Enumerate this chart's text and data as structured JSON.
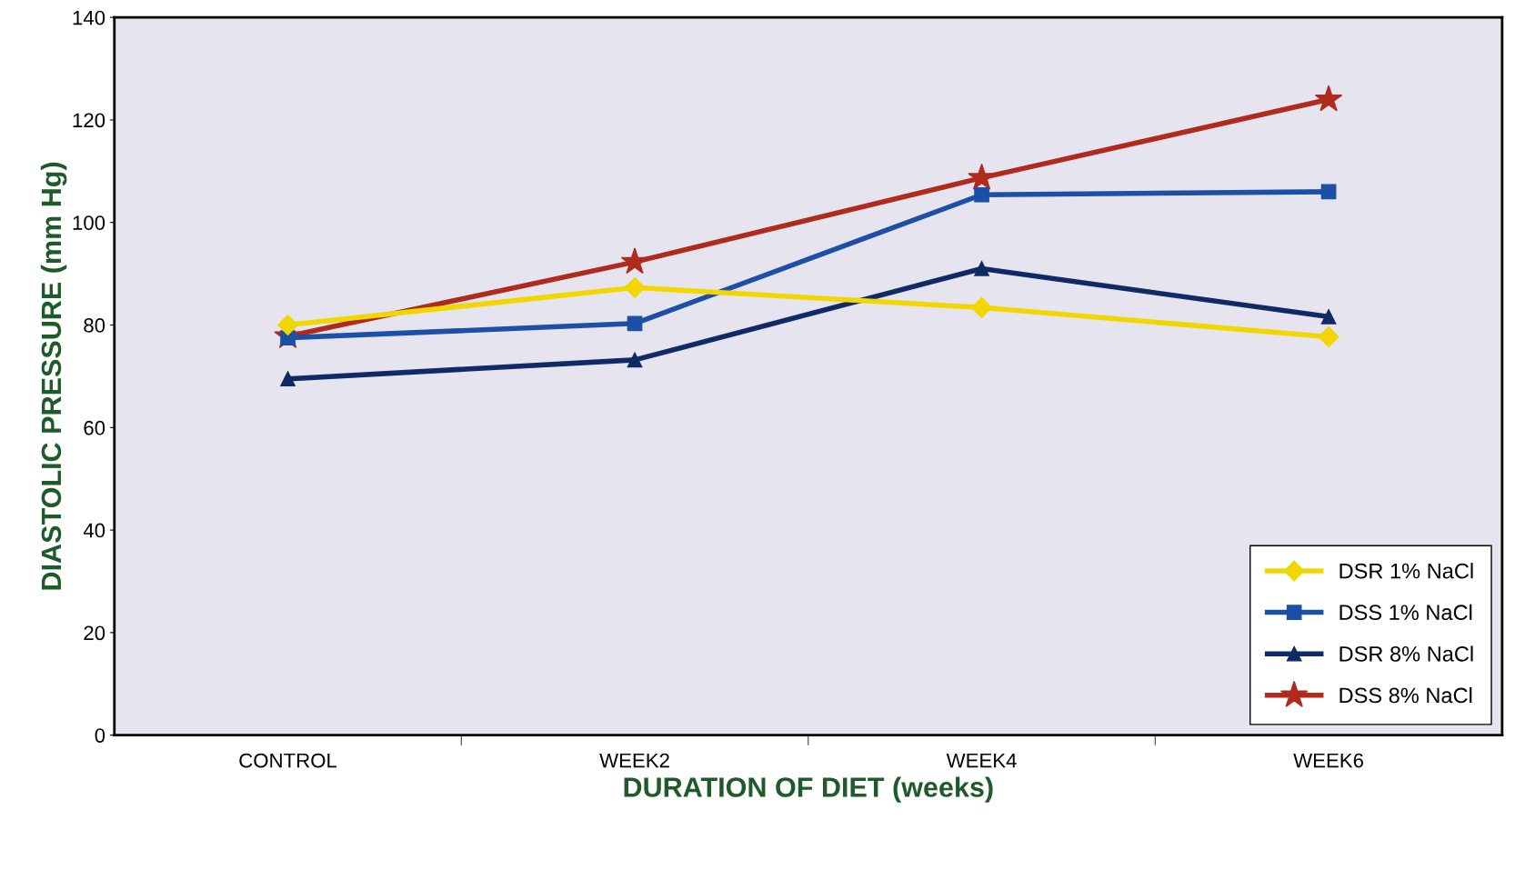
{
  "chart_data": {
    "type": "line",
    "xlabel": "DURATION OF DIET (weeks)",
    "ylabel": "DIASTOLIC PRESSURE (mm Hg)",
    "categories": [
      "CONTROL",
      "WEEK2",
      "WEEK4",
      "WEEK6"
    ],
    "series": [
      {
        "name": "DSR 1% NaCl",
        "color": "#f2d600",
        "marker": "diamond",
        "values": [
          80,
          87.3,
          83.4,
          77.7
        ]
      },
      {
        "name": "DSS 1% NaCl",
        "color": "#1c4fa6",
        "marker": "square",
        "values": [
          77.5,
          80.3,
          105.4,
          106
        ]
      },
      {
        "name": "DSR 8% NaCl",
        "color": "#102a66",
        "marker": "triangle",
        "values": [
          69.5,
          73.2,
          91,
          81.6
        ]
      },
      {
        "name": "DSS 8% NaCl",
        "color": "#b02a1e",
        "marker": "star",
        "values": [
          77.8,
          92.3,
          108.7,
          124
        ]
      }
    ],
    "ylim": [
      0,
      140
    ],
    "yticks": [
      0,
      20,
      40,
      60,
      80,
      100,
      120,
      140
    ],
    "grid": false,
    "legend": "lower right",
    "line_style": "solid"
  }
}
